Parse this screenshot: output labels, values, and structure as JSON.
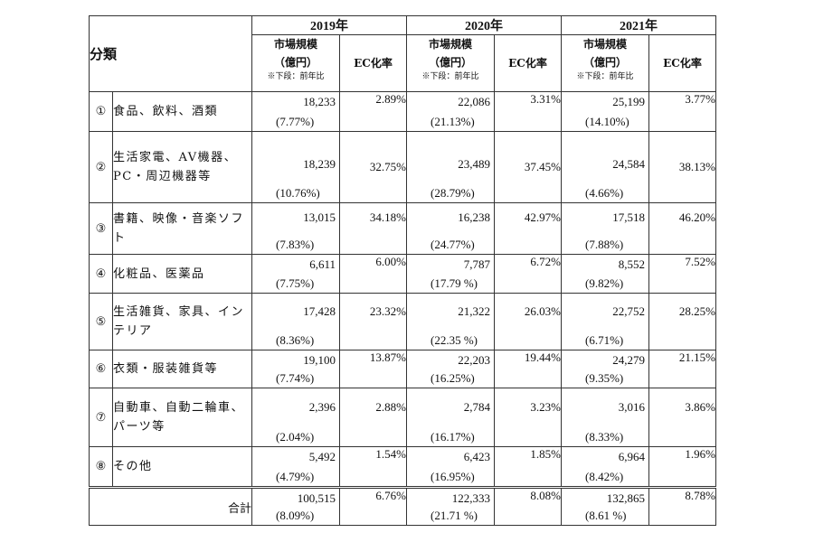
{
  "header": {
    "category_label": "分類",
    "years": [
      "2019年",
      "2020年",
      "2021年"
    ],
    "market_label_line1": "市場規模",
    "market_label_line2": "（億円）",
    "market_note": "※下段：前年比",
    "rate_label": "EC化率"
  },
  "rows": [
    {
      "num": "①",
      "label": "食品、飲料、酒類",
      "y2019": {
        "market": "18,233",
        "growth": "(7.77%)",
        "rate": "2.89%"
      },
      "y2020": {
        "market": "22,086",
        "growth": "(21.13%)",
        "rate": "3.31%"
      },
      "y2021": {
        "market": "25,199",
        "growth": "(14.10%)",
        "rate": "3.77%"
      }
    },
    {
      "num": "②",
      "label": "生活家電、AV機器、PC・周辺機器等",
      "y2019": {
        "market": "18,239",
        "growth": "(10.76%)",
        "rate": "32.75%"
      },
      "y2020": {
        "market": "23,489",
        "growth": "(28.79%)",
        "rate": "37.45%"
      },
      "y2021": {
        "market": "24,584",
        "growth": "(4.66%)",
        "rate": "38.13%"
      }
    },
    {
      "num": "③",
      "label": "書籍、映像・音楽ソフト",
      "y2019": {
        "market": "13,015",
        "growth": "(7.83%)",
        "rate": "34.18%"
      },
      "y2020": {
        "market": "16,238",
        "growth": "(24.77%)",
        "rate": "42.97%"
      },
      "y2021": {
        "market": "17,518",
        "growth": "(7.88%)",
        "rate": "46.20%"
      }
    },
    {
      "num": "④",
      "label": "化粧品、医薬品",
      "y2019": {
        "market": "6,611",
        "growth": "(7.75%)",
        "rate": "6.00%"
      },
      "y2020": {
        "market": "7,787",
        "growth": "(17.79 %)",
        "rate": "6.72%"
      },
      "y2021": {
        "market": "8,552",
        "growth": "(9.82%)",
        "rate": "7.52%"
      }
    },
    {
      "num": "⑤",
      "label": "生活雑貨、家具、インテリア",
      "y2019": {
        "market": "17,428",
        "growth": "(8.36%)",
        "rate": "23.32%"
      },
      "y2020": {
        "market": "21,322",
        "growth": "(22.35 %)",
        "rate": "26.03%"
      },
      "y2021": {
        "market": "22,752",
        "growth": "(6.71%)",
        "rate": "28.25%"
      }
    },
    {
      "num": "⑥",
      "label": "衣類・服装雑貨等",
      "y2019": {
        "market": "19,100",
        "growth": "(7.74%)",
        "rate": "13.87%"
      },
      "y2020": {
        "market": "22,203",
        "growth": "(16.25%)",
        "rate": "19.44%"
      },
      "y2021": {
        "market": "24,279",
        "growth": "(9.35%)",
        "rate": "21.15%"
      }
    },
    {
      "num": "⑦",
      "label": "自動車、自動二輪車、パーツ等",
      "y2019": {
        "market": "2,396",
        "growth": "(2.04%)",
        "rate": "2.88%"
      },
      "y2020": {
        "market": "2,784",
        "growth": "(16.17%)",
        "rate": "3.23%"
      },
      "y2021": {
        "market": "3,016",
        "growth": "(8.33%)",
        "rate": "3.86%"
      }
    },
    {
      "num": "⑧",
      "label": "その他",
      "y2019": {
        "market": "5,492",
        "growth": "(4.79%)",
        "rate": "1.54%"
      },
      "y2020": {
        "market": "6,423",
        "growth": "(16.95%)",
        "rate": "1.85%"
      },
      "y2021": {
        "market": "6,964",
        "growth": "(8.42%)",
        "rate": "1.96%"
      }
    }
  ],
  "total": {
    "label": "合計",
    "y2019": {
      "market": "100,515",
      "growth": "(8.09%)",
      "rate": "6.76%"
    },
    "y2020": {
      "market": "122,333",
      "growth": "(21.71 %)",
      "rate": "8.08%"
    },
    "y2021": {
      "market": "132,865",
      "growth": "(8.61 %)",
      "rate": "8.78%"
    }
  }
}
